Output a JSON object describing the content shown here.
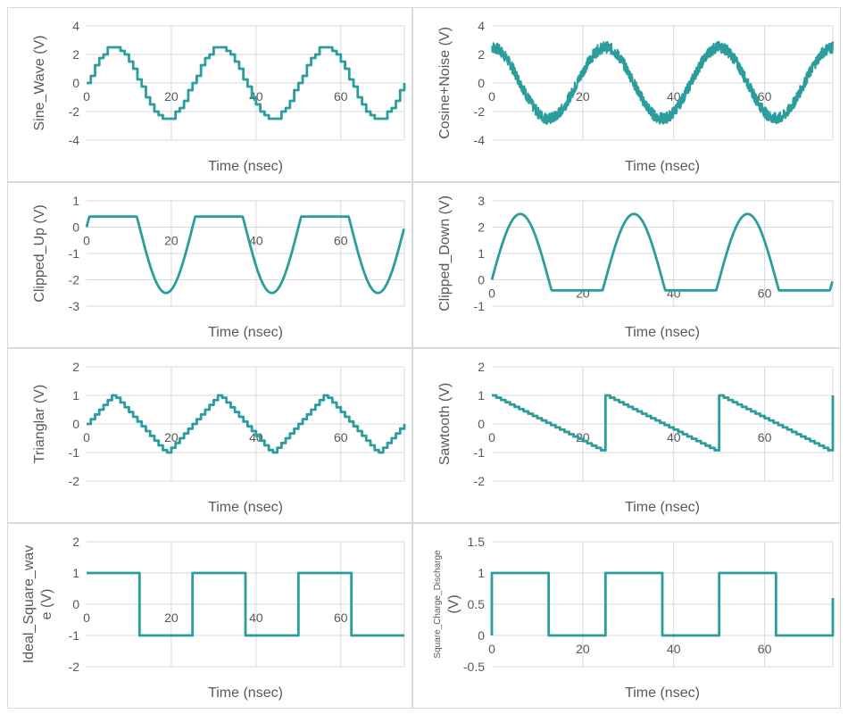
{
  "chart_data": [
    {
      "type": "line",
      "id": "sine",
      "ylabel": "Sine_Wave (V)",
      "xlabel": "Time (nsec)",
      "ylim": [
        -4,
        4
      ],
      "yticks": [
        -4,
        -2,
        0,
        2,
        4
      ],
      "xlim": [
        0,
        75
      ],
      "xticks": [
        0,
        20,
        40,
        60
      ],
      "series": [
        {
          "color": "#2a9d9c",
          "period": 25,
          "amplitude": 2.5,
          "shape": "stepped-sine",
          "step": 1
        }
      ]
    },
    {
      "type": "line",
      "id": "cosine_noise",
      "ylabel": "Cosine+Noise (V)",
      "xlabel": "Time (nsec)",
      "ylim": [
        -4,
        4
      ],
      "yticks": [
        -4,
        -2,
        0,
        2,
        4
      ],
      "xlim": [
        0,
        75
      ],
      "xticks": [
        0,
        20,
        40,
        60
      ],
      "series": [
        {
          "color": "#2a9d9c",
          "period": 25,
          "amplitude": 2.5,
          "noise_band": 0.8,
          "shape": "noisy-cosine"
        }
      ]
    },
    {
      "type": "line",
      "id": "clipped_up",
      "ylabel": "Clipped_Up (V)",
      "xlabel": "Time (nsec)",
      "ylim": [
        -3,
        1
      ],
      "yticks": [
        -3,
        -2,
        -1,
        0,
        1
      ],
      "xlim": [
        0,
        75
      ],
      "xticks": [
        0,
        20,
        40,
        60
      ],
      "series": [
        {
          "color": "#2a9d9c",
          "period": 25,
          "amplitude": 2.5,
          "clip_max": 0.4,
          "shape": "clipped-sine"
        }
      ]
    },
    {
      "type": "line",
      "id": "clipped_down",
      "ylabel": "Clipped_Down (V)",
      "xlabel": "Time (nsec)",
      "ylim": [
        -1,
        3
      ],
      "yticks": [
        -1,
        0,
        1,
        2,
        3
      ],
      "xlim": [
        0,
        75
      ],
      "xticks": [
        0,
        20,
        40,
        60
      ],
      "series": [
        {
          "color": "#2a9d9c",
          "period": 25,
          "amplitude": 2.5,
          "clip_min": -0.4,
          "shape": "clipped-sine"
        }
      ]
    },
    {
      "type": "line",
      "id": "triangular",
      "ylabel": "Trianglar (V)",
      "xlabel": "Time (nsec)",
      "ylim": [
        -2,
        2
      ],
      "yticks": [
        -2,
        -1,
        0,
        1,
        2
      ],
      "xlim": [
        0,
        75
      ],
      "xticks": [
        0,
        20,
        40,
        60
      ],
      "series": [
        {
          "color": "#2a9d9c",
          "period": 25,
          "amplitude": 1,
          "shape": "stepped-triangle",
          "step": 1
        }
      ]
    },
    {
      "type": "line",
      "id": "sawtooth",
      "ylabel": "Sawtooth (V)",
      "xlabel": "Time (nsec)",
      "ylim": [
        -2,
        2
      ],
      "yticks": [
        -2,
        -1,
        0,
        1,
        2
      ],
      "xlim": [
        0,
        75
      ],
      "xticks": [
        0,
        20,
        40,
        60
      ],
      "series": [
        {
          "color": "#2a9d9c",
          "period": 25,
          "amplitude": 1,
          "shape": "stepped-sawtooth",
          "step": 1
        }
      ]
    },
    {
      "type": "line",
      "id": "ideal_square",
      "ylabel": "Ideal_Square_wave (V)",
      "xlabel": "Time (nsec)",
      "ylim": [
        -2,
        2
      ],
      "yticks": [
        -2,
        -1,
        0,
        1,
        2
      ],
      "xlim": [
        0,
        75
      ],
      "xticks": [
        0,
        20,
        40,
        60
      ],
      "series": [
        {
          "color": "#2a9d9c",
          "period": 25,
          "high": 1,
          "low": -1,
          "shape": "square"
        }
      ]
    },
    {
      "type": "line",
      "id": "square_charge",
      "ylabel": "Square_Charge_Discharge (V)",
      "xlabel": "Time (nsec)",
      "ylim": [
        -0.5,
        1.5
      ],
      "yticks": [
        -0.5,
        0,
        0.5,
        1,
        1.5
      ],
      "xlim": [
        0,
        75
      ],
      "xticks": [
        0,
        20,
        40,
        60
      ],
      "series": [
        {
          "color": "#2a9d9c",
          "period": 25,
          "high": 1,
          "low": 0,
          "shape": "square-rc"
        }
      ]
    }
  ]
}
